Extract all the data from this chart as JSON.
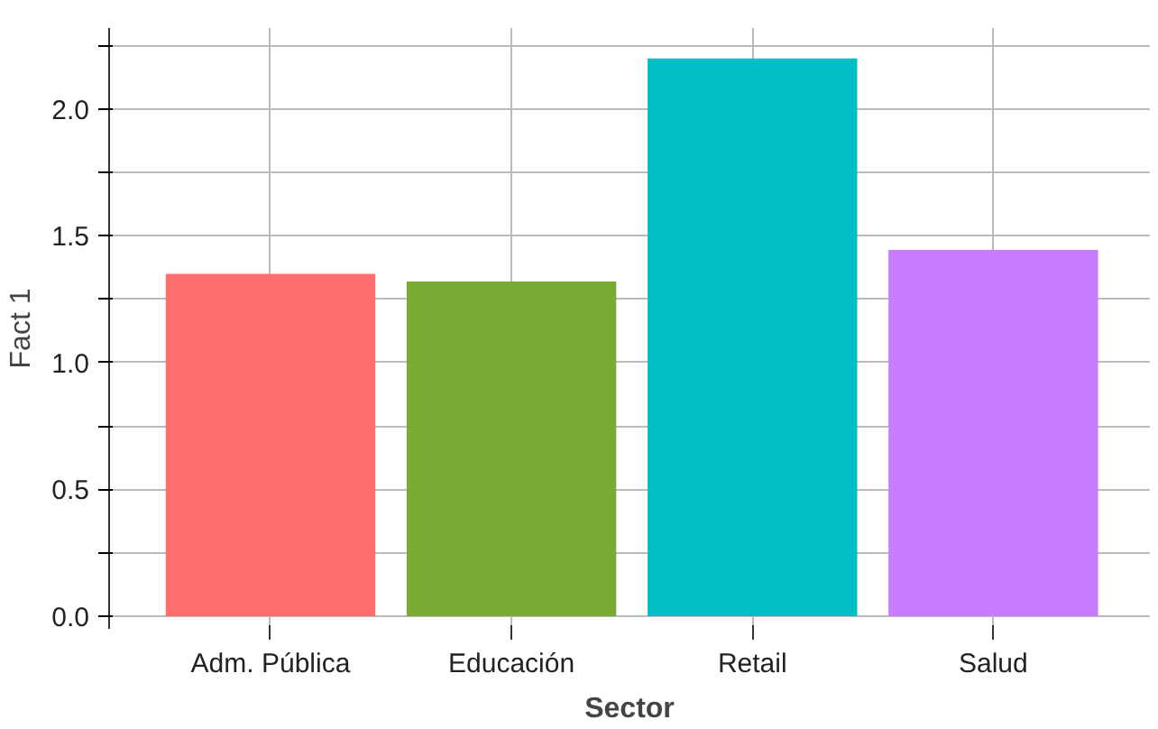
{
  "chart_data": {
    "type": "bar",
    "xlabel": "Sector",
    "ylabel": "Fact 1",
    "categories": [
      "Adm. Pública",
      "Educación",
      "Retail",
      "Salud"
    ],
    "values": [
      1.35,
      1.32,
      2.2,
      1.445
    ],
    "colors": [
      "#ff6e6e",
      "#7aac35",
      "#00bfc4",
      "#c77cff"
    ],
    "ylim": [
      -0.05,
      2.32
    ],
    "yticks": [
      {
        "value": 0,
        "label": "0.0"
      },
      {
        "value": 0.25,
        "label": null
      },
      {
        "value": 0.5,
        "label": "0.5"
      },
      {
        "value": 0.75,
        "label": null
      },
      {
        "value": 1,
        "label": "1.0"
      },
      {
        "value": 1.25,
        "label": null
      },
      {
        "value": 1.5,
        "label": "1.5"
      },
      {
        "value": 1.75,
        "label": null
      },
      {
        "value": 2,
        "label": "2.0"
      },
      {
        "value": 2.25,
        "label": null
      }
    ],
    "grid": true
  }
}
